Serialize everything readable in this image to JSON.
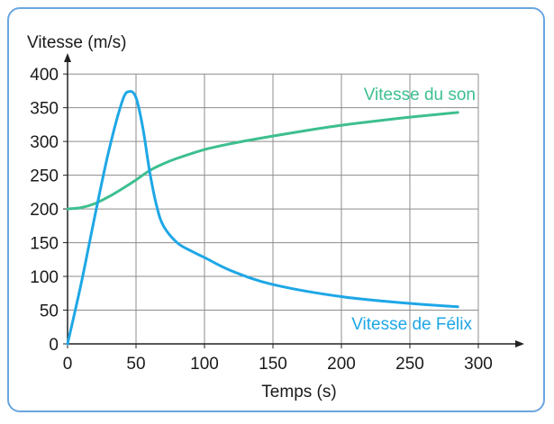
{
  "chart_data": {
    "type": "line",
    "ylabel": "Vitesse (m/s)",
    "xlabel": "Temps (s)",
    "xlim": [
      0,
      300
    ],
    "ylim": [
      0,
      400
    ],
    "xticks": [
      0,
      50,
      100,
      150,
      200,
      250,
      300
    ],
    "yticks": [
      0,
      50,
      100,
      150,
      200,
      250,
      300,
      350,
      400
    ],
    "grid": true,
    "series": [
      {
        "name": "Vitesse du son",
        "color": "#3dbf8f",
        "x": [
          0,
          10,
          20,
          30,
          40,
          50,
          60,
          70,
          80,
          100,
          120,
          150,
          180,
          200,
          220,
          250,
          280,
          285
        ],
        "y": [
          200,
          202,
          208,
          218,
          230,
          243,
          257,
          267,
          275,
          288,
          297,
          308,
          318,
          324,
          329,
          336,
          342,
          343
        ]
      },
      {
        "name": "Vitesse de Félix",
        "color": "#1ea7e6",
        "x": [
          0,
          10,
          20,
          30,
          40,
          45,
          50,
          55,
          60,
          65,
          70,
          80,
          90,
          100,
          120,
          150,
          200,
          250,
          285
        ],
        "y": [
          0,
          90,
          190,
          285,
          360,
          374,
          365,
          320,
          255,
          205,
          175,
          150,
          138,
          128,
          108,
          88,
          70,
          60,
          55
        ]
      }
    ]
  }
}
